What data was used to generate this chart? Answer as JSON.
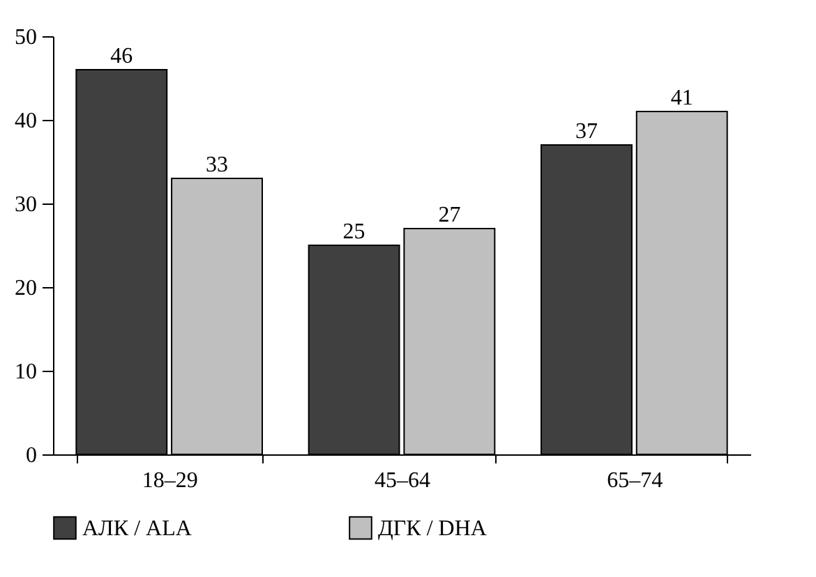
{
  "chart_data": {
    "type": "bar",
    "categories": [
      "18–29",
      "45–64",
      "65–74"
    ],
    "series": [
      {
        "name": "АЛК / ALA",
        "color": "#404040",
        "values": [
          46,
          25,
          37
        ]
      },
      {
        "name": "ДГК / DHA",
        "color": "#bfbfbf",
        "values": [
          33,
          27,
          41
        ]
      }
    ],
    "ylim": [
      0,
      50
    ],
    "yticks": [
      0,
      10,
      20,
      30,
      40,
      50
    ],
    "data_labels": true,
    "legend": "bottom",
    "grid": false
  }
}
